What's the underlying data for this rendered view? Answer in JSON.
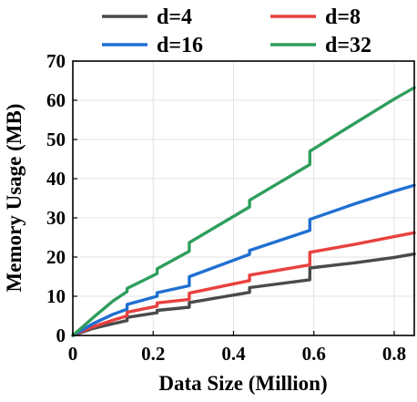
{
  "chart_data": {
    "type": "line",
    "xlabel": "Data Size (Million)",
    "ylabel": "Memory Usage (MB)",
    "xlim": [
      0,
      0.85
    ],
    "ylim": [
      0,
      70
    ],
    "xticks": [
      "0",
      "0.2",
      "0.4",
      "0.6",
      "0.8"
    ],
    "yticks": [
      "0",
      "10",
      "20",
      "30",
      "40",
      "50",
      "60",
      "70"
    ],
    "grid": true,
    "legend_placement": "top",
    "series": [
      {
        "name": "d=4",
        "color": "#4a4a4a",
        "x": [
          0,
          0.05,
          0.1,
          0.135,
          0.135,
          0.21,
          0.21,
          0.29,
          0.29,
          0.44,
          0.44,
          0.59,
          0.59,
          0.7,
          0.8,
          0.85
        ],
        "y": [
          0,
          1.8,
          3.0,
          3.8,
          4.6,
          5.8,
          6.4,
          7.2,
          8.4,
          11.0,
          12.2,
          14.2,
          17.2,
          18.5,
          19.9,
          20.8
        ]
      },
      {
        "name": "d=8",
        "color": "#e8413f",
        "x": [
          0,
          0.05,
          0.1,
          0.135,
          0.135,
          0.21,
          0.21,
          0.29,
          0.29,
          0.44,
          0.44,
          0.59,
          0.59,
          0.7,
          0.8,
          0.85
        ],
        "y": [
          0,
          2.2,
          3.9,
          5.0,
          5.9,
          7.5,
          8.3,
          9.2,
          10.8,
          14.0,
          15.4,
          18.0,
          21.2,
          23.2,
          25.2,
          26.2
        ]
      },
      {
        "name": "d=16",
        "color": "#1f6fd1",
        "x": [
          0,
          0.05,
          0.1,
          0.135,
          0.135,
          0.21,
          0.21,
          0.29,
          0.29,
          0.44,
          0.44,
          0.59,
          0.59,
          0.7,
          0.8,
          0.85
        ],
        "y": [
          0,
          3.0,
          5.4,
          6.7,
          7.9,
          10.0,
          10.9,
          12.7,
          15.0,
          20.7,
          21.7,
          26.8,
          29.6,
          33.5,
          36.8,
          38.3
        ]
      },
      {
        "name": "d=32",
        "color": "#2e9e5c",
        "x": [
          0,
          0.05,
          0.1,
          0.135,
          0.135,
          0.21,
          0.21,
          0.29,
          0.29,
          0.44,
          0.44,
          0.59,
          0.59,
          0.7,
          0.8,
          0.85
        ],
        "y": [
          0,
          4.5,
          8.8,
          11.2,
          12.0,
          15.8,
          17.0,
          21.5,
          23.7,
          32.8,
          34.5,
          43.6,
          47.0,
          54.0,
          60.3,
          63.2
        ]
      }
    ]
  }
}
